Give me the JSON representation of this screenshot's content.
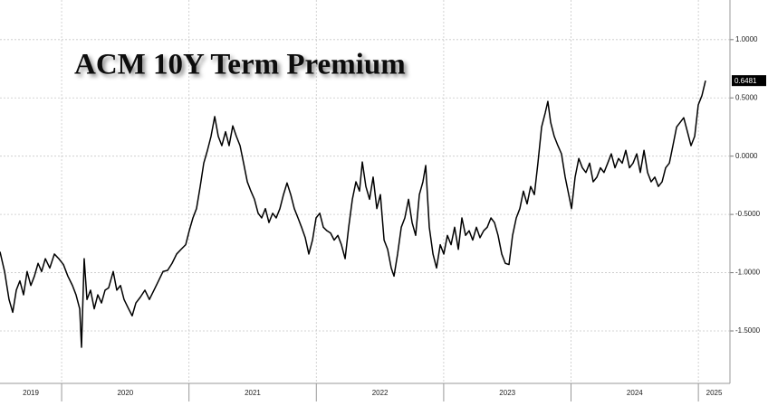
{
  "chart_data": {
    "type": "line",
    "title": "ACM 10Y Term Premium",
    "x": [
      2019.516,
      2019.552,
      2019.587,
      2019.616,
      2019.644,
      2019.672,
      2019.701,
      2019.729,
      2019.758,
      2019.786,
      2019.815,
      2019.843,
      2019.872,
      2019.907,
      2019.943,
      2019.978,
      2020.014,
      2020.049,
      2020.085,
      2020.113,
      2020.142,
      2020.156,
      2020.177,
      2020.199,
      2020.227,
      2020.256,
      2020.284,
      2020.313,
      2020.341,
      2020.369,
      2020.405,
      2020.433,
      2020.462,
      2020.49,
      2020.526,
      2020.554,
      2020.583,
      2020.618,
      2020.654,
      2020.689,
      2020.725,
      2020.761,
      2020.796,
      2020.832,
      2020.867,
      2020.903,
      2020.938,
      2020.974,
      2021.002,
      2021.031,
      2021.059,
      2021.088,
      2021.116,
      2021.145,
      2021.173,
      2021.202,
      2021.23,
      2021.258,
      2021.287,
      2021.315,
      2021.344,
      2021.372,
      2021.401,
      2021.429,
      2021.458,
      2021.486,
      2021.514,
      2021.543,
      2021.571,
      2021.6,
      2021.628,
      2021.657,
      2021.685,
      2021.714,
      2021.742,
      2021.77,
      2021.799,
      2021.827,
      2021.856,
      2021.884,
      2021.913,
      2021.941,
      2021.97,
      2021.998,
      2022.027,
      2022.055,
      2022.083,
      2022.112,
      2022.14,
      2022.169,
      2022.197,
      2022.226,
      2022.254,
      2022.283,
      2022.311,
      2022.339,
      2022.361,
      2022.389,
      2022.418,
      2022.446,
      2022.475,
      2022.503,
      2022.532,
      2022.56,
      2022.588,
      2022.61,
      2022.638,
      2022.667,
      2022.695,
      2022.724,
      2022.752,
      2022.78,
      2022.809,
      2022.837,
      2022.859,
      2022.887,
      2022.916,
      2022.944,
      2022.973,
      2023.001,
      2023.029,
      2023.058,
      2023.086,
      2023.115,
      2023.143,
      2023.172,
      2023.2,
      2023.228,
      2023.257,
      2023.285,
      2023.314,
      2023.342,
      2023.371,
      2023.399,
      2023.427,
      2023.456,
      2023.484,
      2023.513,
      2023.541,
      2023.57,
      2023.598,
      2023.626,
      2023.655,
      2023.683,
      2023.712,
      2023.74,
      2023.769,
      2023.797,
      2023.818,
      2023.84,
      2023.868,
      2023.897,
      2023.925,
      2023.954,
      2023.982,
      2024.004,
      2024.032,
      2024.061,
      2024.089,
      2024.117,
      2024.146,
      2024.174,
      2024.203,
      2024.231,
      2024.259,
      2024.288,
      2024.316,
      2024.345,
      2024.373,
      2024.402,
      2024.43,
      2024.459,
      2024.487,
      2024.516,
      2024.544,
      2024.573,
      2024.601,
      2024.629,
      2024.658,
      2024.686,
      2024.715,
      2024.743,
      2024.772,
      2024.8,
      2024.829,
      2024.857,
      2024.885,
      2024.914,
      2024.942,
      2024.971,
      2024.999,
      2025.028,
      2025.056
    ],
    "series": [
      {
        "color": "#000000",
        "values": [
          -0.82,
          -0.99,
          -1.23,
          -1.34,
          -1.15,
          -1.07,
          -1.19,
          -0.99,
          -1.11,
          -1.03,
          -0.92,
          -0.99,
          -0.88,
          -0.96,
          -0.84,
          -0.88,
          -0.93,
          -1.03,
          -1.11,
          -1.19,
          -1.31,
          -1.64,
          -0.88,
          -1.23,
          -1.15,
          -1.31,
          -1.19,
          -1.26,
          -1.15,
          -1.13,
          -0.99,
          -1.15,
          -1.11,
          -1.23,
          -1.31,
          -1.37,
          -1.26,
          -1.21,
          -1.15,
          -1.23,
          -1.15,
          -1.07,
          -0.99,
          -0.98,
          -0.92,
          -0.84,
          -0.8,
          -0.76,
          -0.64,
          -0.53,
          -0.45,
          -0.26,
          -0.06,
          0.05,
          0.17,
          0.34,
          0.17,
          0.09,
          0.21,
          0.09,
          0.26,
          0.17,
          0.09,
          -0.06,
          -0.22,
          -0.3,
          -0.37,
          -0.49,
          -0.53,
          -0.45,
          -0.57,
          -0.49,
          -0.53,
          -0.45,
          -0.33,
          -0.23,
          -0.33,
          -0.45,
          -0.53,
          -0.61,
          -0.7,
          -0.84,
          -0.72,
          -0.53,
          -0.49,
          -0.61,
          -0.64,
          -0.66,
          -0.72,
          -0.68,
          -0.76,
          -0.88,
          -0.61,
          -0.37,
          -0.22,
          -0.3,
          -0.05,
          -0.26,
          -0.37,
          -0.18,
          -0.45,
          -0.33,
          -0.72,
          -0.8,
          -0.96,
          -1.03,
          -0.84,
          -0.61,
          -0.53,
          -0.37,
          -0.57,
          -0.68,
          -0.33,
          -0.22,
          -0.08,
          -0.61,
          -0.84,
          -0.96,
          -0.76,
          -0.84,
          -0.68,
          -0.76,
          -0.61,
          -0.8,
          -0.53,
          -0.68,
          -0.64,
          -0.72,
          -0.61,
          -0.7,
          -0.64,
          -0.61,
          -0.53,
          -0.57,
          -0.68,
          -0.84,
          -0.92,
          -0.93,
          -0.68,
          -0.53,
          -0.45,
          -0.3,
          -0.41,
          -0.26,
          -0.33,
          -0.06,
          0.25,
          0.37,
          0.47,
          0.29,
          0.17,
          0.09,
          0.02,
          -0.18,
          -0.33,
          -0.45,
          -0.18,
          -0.02,
          -0.1,
          -0.14,
          -0.06,
          -0.22,
          -0.18,
          -0.1,
          -0.14,
          -0.06,
          0.02,
          -0.1,
          -0.02,
          -0.06,
          0.05,
          -0.1,
          -0.06,
          0.02,
          -0.14,
          0.05,
          -0.14,
          -0.22,
          -0.18,
          -0.26,
          -0.22,
          -0.1,
          -0.06,
          0.09,
          0.25,
          0.29,
          0.33,
          0.21,
          0.09,
          0.17,
          0.44,
          0.52,
          0.6481
        ]
      }
    ],
    "xlim": [
      2019.516,
      2025.248
    ],
    "xticks": [
      2019,
      2020,
      2021,
      2022,
      2023,
      2024,
      2025
    ],
    "ylim": [
      -1.95,
      1.34
    ],
    "yticks": [
      {
        "value": 1,
        "label": "1.0000"
      },
      {
        "value": 0.5,
        "label": "0.5000"
      },
      {
        "value": 0,
        "label": "0.0000"
      },
      {
        "value": -0.5,
        "label": "-0.5000"
      },
      {
        "value": -1,
        "label": "-1.0000"
      },
      {
        "value": -1.5,
        "label": "-1.5000"
      }
    ],
    "grid": true
  }
}
